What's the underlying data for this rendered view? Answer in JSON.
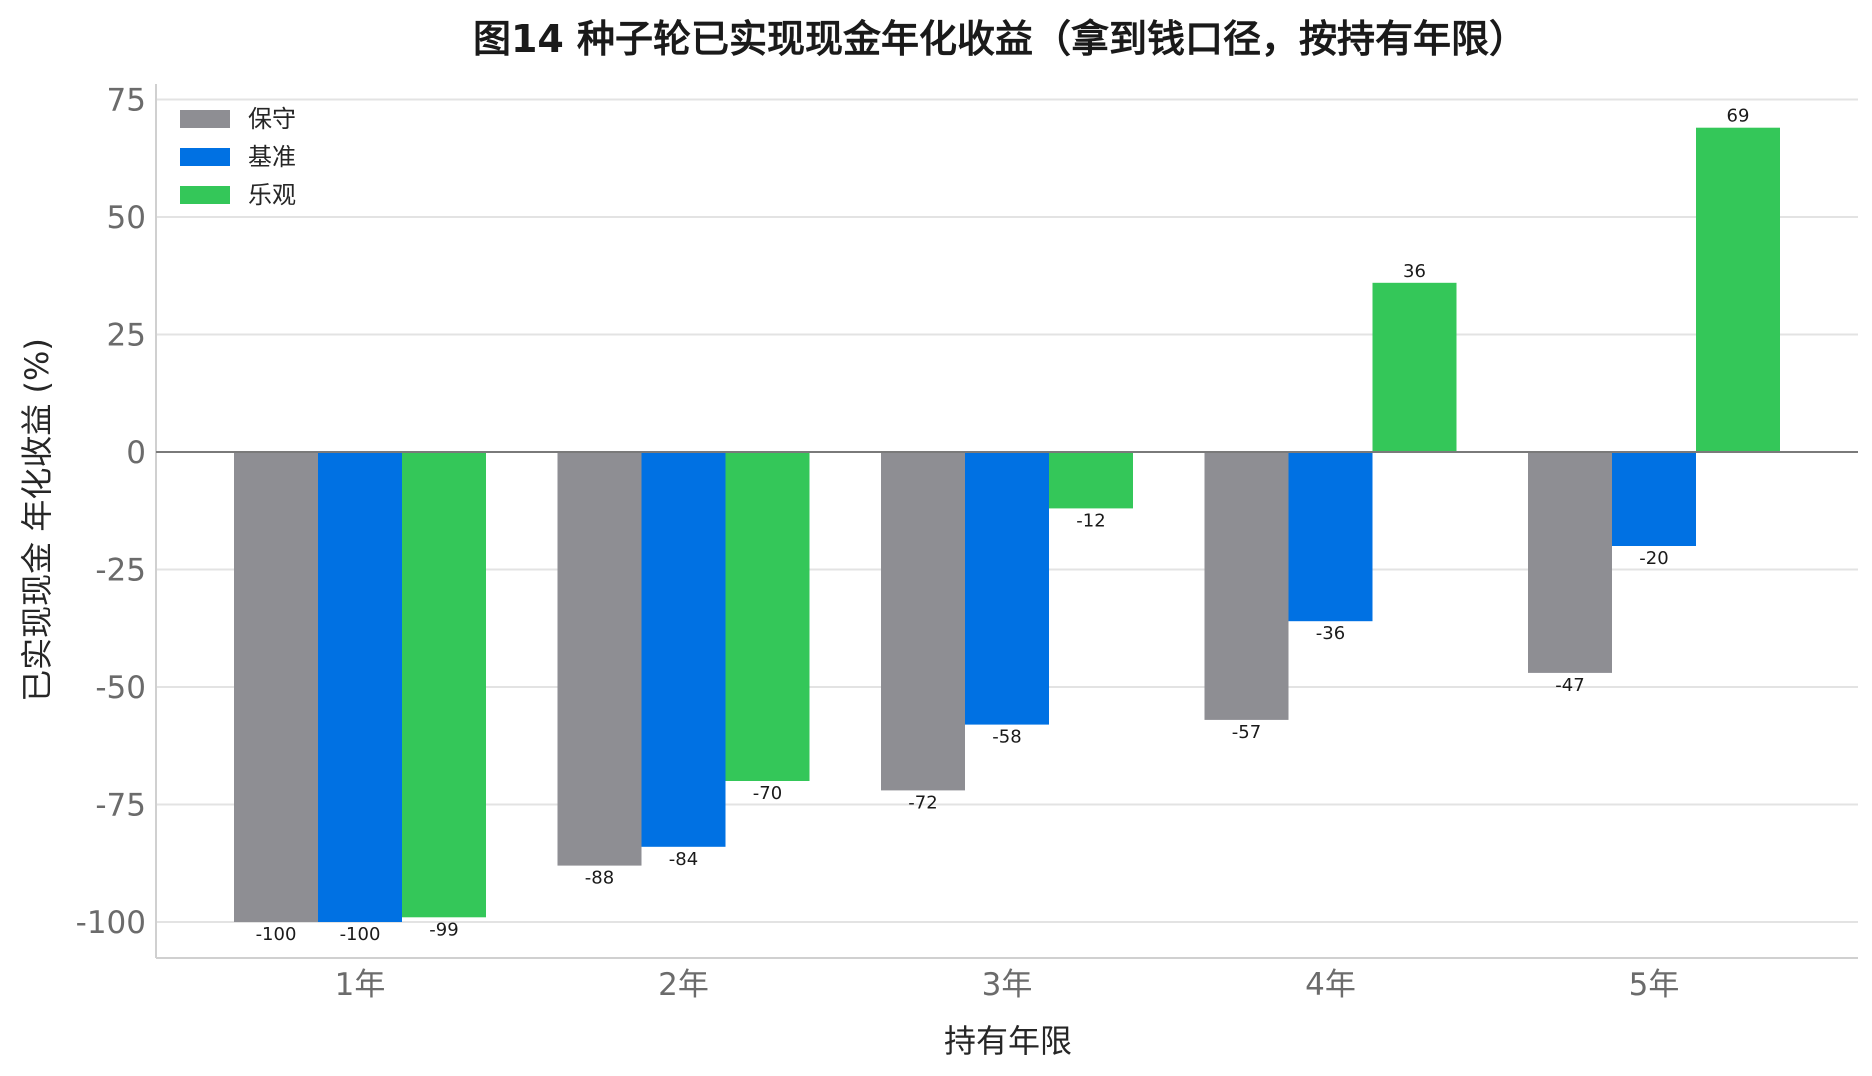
{
  "chart_data": {
    "type": "bar",
    "title": "图14 种子轮已实现现金年化收益（拿到钱口径，按持有年限）",
    "xlabel": "持有年限",
    "ylabel": "已实现现金 年化收益 (%)",
    "categories": [
      "1年",
      "2年",
      "3年",
      "4年",
      "5年"
    ],
    "series": [
      {
        "name": "保守",
        "color": "#8e8e93",
        "values": [
          -100,
          -88,
          -72,
          -57,
          -47
        ]
      },
      {
        "name": "基准",
        "color": "#0071e3",
        "values": [
          -100,
          -84,
          -58,
          -36,
          -20
        ]
      },
      {
        "name": "乐观",
        "color": "#34c759",
        "values": [
          -99,
          -70,
          -12,
          36,
          69
        ]
      }
    ],
    "ylim": [
      -108,
      78
    ],
    "yticks": [
      -100,
      -75,
      -50,
      -25,
      0,
      25,
      50,
      75
    ],
    "grid": true,
    "legend_position": "top-left",
    "data_labels": true
  }
}
